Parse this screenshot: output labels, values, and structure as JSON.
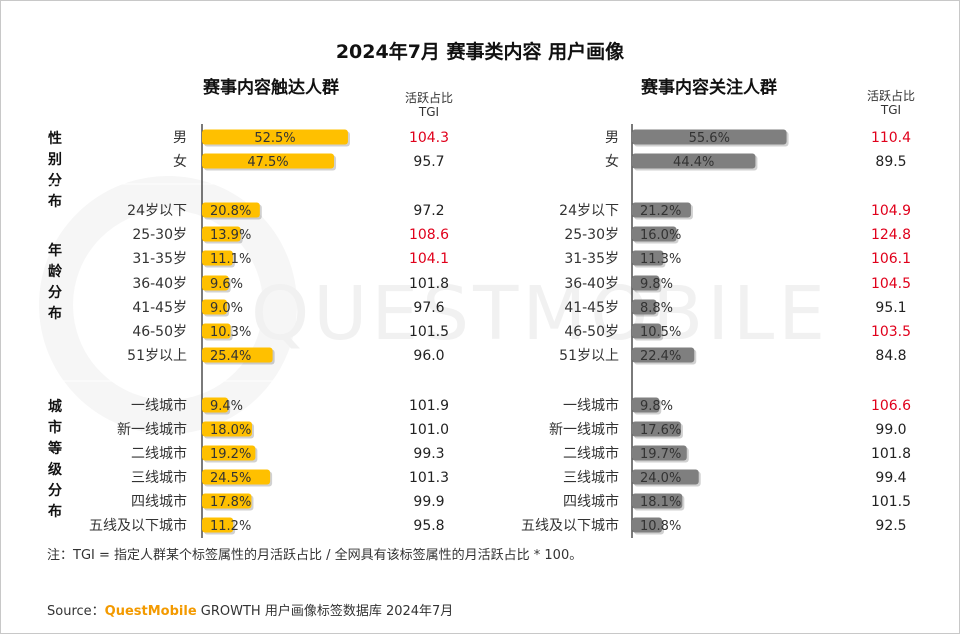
{
  "title": "2024年7月 赛事类内容 用户画像",
  "tgi_header": [
    "活跃占比",
    "TGI"
  ],
  "categories": [
    {
      "name": "性别分布"
    },
    {
      "name": "年龄分布"
    },
    {
      "name": "城市等级分布"
    }
  ],
  "watermark": "QUESTMOBILE",
  "note": "注：TGI = 指定人群某个标签属性的月活跃占比 / 全网具有该标签属性的月活跃占比 * 100。",
  "source": {
    "prefix": "Source：",
    "brand": "QuestMobile",
    "text": " GROWTH 用户画像标签数据库 2024年7月"
  },
  "colors": {
    "reach_bar": "#ffc000",
    "follow_bar": "#7f7f7f",
    "high_tgi": "#e0001b",
    "normal_tgi": "#222222",
    "divider": "#333333"
  },
  "chart_data": [
    {
      "type": "bar",
      "title": "赛事内容触达人群",
      "orientation": "horizontal",
      "groups": [
        {
          "group": "性别分布",
          "categories": [
            "男",
            "女"
          ],
          "values": [
            52.5,
            47.5
          ],
          "tgi": [
            104.3,
            95.7
          ]
        },
        {
          "group": "年龄分布",
          "categories": [
            "24岁以下",
            "25-30岁",
            "31-35岁",
            "36-40岁",
            "41-45岁",
            "46-50岁",
            "51岁以上"
          ],
          "values": [
            20.8,
            13.9,
            11.1,
            9.6,
            9.0,
            10.3,
            25.4
          ],
          "tgi": [
            97.2,
            108.6,
            104.1,
            101.8,
            97.6,
            101.5,
            96.0
          ]
        },
        {
          "group": "城市等级分布",
          "categories": [
            "一线城市",
            "新一线城市",
            "二线城市",
            "三线城市",
            "四线城市",
            "五线及以下城市"
          ],
          "values": [
            9.4,
            18.0,
            19.2,
            24.5,
            17.8,
            11.2
          ],
          "tgi": [
            101.9,
            101.0,
            99.3,
            101.3,
            99.9,
            95.8
          ]
        }
      ]
    },
    {
      "type": "bar",
      "title": "赛事内容关注人群",
      "orientation": "horizontal",
      "groups": [
        {
          "group": "性别分布",
          "categories": [
            "男",
            "女"
          ],
          "values": [
            55.6,
            44.4
          ],
          "tgi": [
            110.4,
            89.5
          ]
        },
        {
          "group": "年龄分布",
          "categories": [
            "24岁以下",
            "25-30岁",
            "31-35岁",
            "36-40岁",
            "41-45岁",
            "46-50岁",
            "51岁以上"
          ],
          "values": [
            21.2,
            16.0,
            11.3,
            9.8,
            8.8,
            10.5,
            22.4
          ],
          "tgi": [
            104.9,
            124.8,
            106.1,
            104.5,
            95.1,
            103.5,
            84.8
          ]
        },
        {
          "group": "城市等级分布",
          "categories": [
            "一线城市",
            "新一线城市",
            "二线城市",
            "三线城市",
            "四线城市",
            "五线及以下城市"
          ],
          "values": [
            9.8,
            17.6,
            19.7,
            24.0,
            18.1,
            10.8
          ],
          "tgi": [
            106.6,
            99.0,
            101.8,
            99.4,
            101.5,
            92.5
          ]
        }
      ]
    }
  ]
}
